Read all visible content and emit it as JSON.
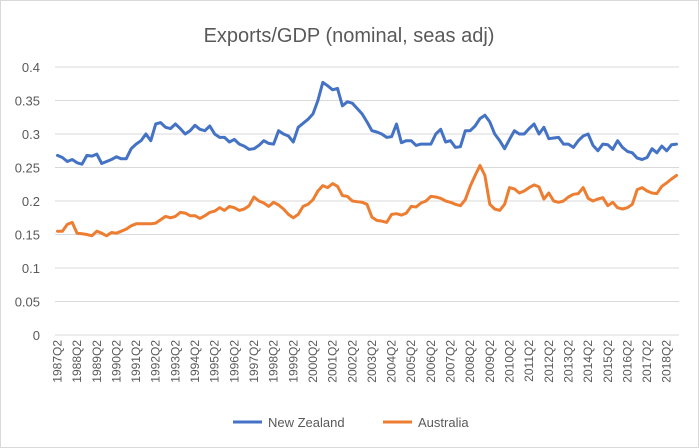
{
  "chart_data": {
    "type": "line",
    "title": "Exports/GDP (nominal, seas adj)",
    "xlabel": "",
    "ylabel": "",
    "ylim": [
      0,
      0.4
    ],
    "yticks": [
      "0",
      "0.05",
      "0.1",
      "0.15",
      "0.2",
      "0.25",
      "0.3",
      "0.35",
      "0.4"
    ],
    "grid": true,
    "legend_position": "bottom",
    "x_start": "1987Q2",
    "x_end": "2018Q4",
    "x_tick_labels": [
      "1987Q2",
      "1988Q2",
      "1989Q2",
      "1990Q2",
      "1991Q2",
      "1992Q2",
      "1993Q2",
      "1994Q2",
      "1995Q2",
      "1996Q2",
      "1997Q2",
      "1998Q2",
      "1999Q2",
      "2000Q2",
      "2001Q2",
      "2002Q2",
      "2003Q2",
      "2004Q2",
      "2005Q2",
      "2006Q2",
      "2007Q2",
      "2008Q2",
      "2009Q2",
      "2010Q2",
      "2011Q2",
      "2012Q2",
      "2013Q2",
      "2014Q2",
      "2015Q2",
      "2016Q2",
      "2017Q2",
      "2018Q2"
    ],
    "series": [
      {
        "name": "New Zealand",
        "color": "#4472c4",
        "values": [
          0.268,
          0.265,
          0.259,
          0.262,
          0.257,
          0.255,
          0.268,
          0.267,
          0.27,
          0.256,
          0.259,
          0.262,
          0.266,
          0.263,
          0.263,
          0.278,
          0.285,
          0.29,
          0.3,
          0.29,
          0.315,
          0.317,
          0.31,
          0.308,
          0.315,
          0.308,
          0.3,
          0.305,
          0.313,
          0.307,
          0.305,
          0.312,
          0.3,
          0.295,
          0.295,
          0.288,
          0.292,
          0.285,
          0.282,
          0.277,
          0.278,
          0.283,
          0.29,
          0.286,
          0.285,
          0.305,
          0.3,
          0.297,
          0.288,
          0.31,
          0.316,
          0.322,
          0.33,
          0.35,
          0.377,
          0.372,
          0.366,
          0.368,
          0.342,
          0.348,
          0.346,
          0.338,
          0.33,
          0.318,
          0.305,
          0.303,
          0.3,
          0.295,
          0.296,
          0.315,
          0.287,
          0.29,
          0.29,
          0.283,
          0.285,
          0.285,
          0.285,
          0.3,
          0.307,
          0.288,
          0.29,
          0.28,
          0.281,
          0.305,
          0.305,
          0.312,
          0.323,
          0.328,
          0.318,
          0.3,
          0.29,
          0.278,
          0.292,
          0.305,
          0.3,
          0.3,
          0.308,
          0.315,
          0.3,
          0.31,
          0.293,
          0.294,
          0.295,
          0.285,
          0.285,
          0.28,
          0.29,
          0.297,
          0.3,
          0.283,
          0.275,
          0.285,
          0.284,
          0.277,
          0.29,
          0.28,
          0.274,
          0.272,
          0.264,
          0.262,
          0.265,
          0.278,
          0.272,
          0.282,
          0.275,
          0.284,
          0.285
        ]
      },
      {
        "name": "Australia",
        "color": "#ed7d31",
        "values": [
          0.155,
          0.155,
          0.165,
          0.168,
          0.152,
          0.151,
          0.15,
          0.148,
          0.155,
          0.152,
          0.148,
          0.153,
          0.152,
          0.155,
          0.158,
          0.163,
          0.166,
          0.166,
          0.166,
          0.166,
          0.167,
          0.172,
          0.177,
          0.175,
          0.177,
          0.183,
          0.182,
          0.178,
          0.178,
          0.174,
          0.178,
          0.183,
          0.185,
          0.19,
          0.186,
          0.192,
          0.19,
          0.186,
          0.188,
          0.193,
          0.206,
          0.2,
          0.197,
          0.192,
          0.198,
          0.194,
          0.188,
          0.18,
          0.175,
          0.18,
          0.192,
          0.195,
          0.202,
          0.215,
          0.223,
          0.22,
          0.226,
          0.222,
          0.208,
          0.207,
          0.2,
          0.199,
          0.198,
          0.195,
          0.176,
          0.171,
          0.17,
          0.168,
          0.18,
          0.181,
          0.179,
          0.182,
          0.192,
          0.191,
          0.197,
          0.2,
          0.207,
          0.206,
          0.204,
          0.2,
          0.198,
          0.195,
          0.193,
          0.202,
          0.222,
          0.238,
          0.253,
          0.238,
          0.195,
          0.188,
          0.186,
          0.195,
          0.22,
          0.218,
          0.212,
          0.215,
          0.22,
          0.224,
          0.221,
          0.203,
          0.212,
          0.2,
          0.198,
          0.2,
          0.206,
          0.21,
          0.211,
          0.22,
          0.204,
          0.2,
          0.203,
          0.205,
          0.193,
          0.198,
          0.19,
          0.188,
          0.19,
          0.195,
          0.217,
          0.22,
          0.215,
          0.212,
          0.211,
          0.222,
          0.227,
          0.233,
          0.238
        ]
      }
    ]
  }
}
